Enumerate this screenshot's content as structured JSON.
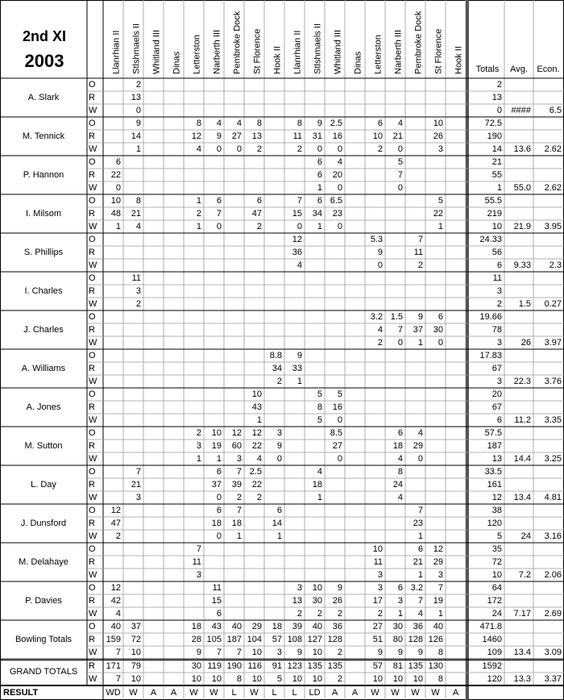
{
  "header": {
    "title": "2nd XI",
    "year": 2003
  },
  "columns": [
    "Llanrhian II",
    "Stlshmaels II",
    "Whitland III",
    "Dinas",
    "Letterston",
    "Narberth III",
    "Pembroke Dock",
    "St Florence",
    "Hook II",
    "Llanrhian II",
    "Stlshmaels II",
    "Whitland III",
    "Dinas",
    "Letterston",
    "Narberth III",
    "Pembroke Dock",
    "St Florence",
    "Hook II"
  ],
  "totals_headers": [
    "Totals",
    "Avg.",
    "Econ."
  ],
  "row_labels": [
    "O",
    "R",
    "W"
  ],
  "players": [
    {
      "name": "A. Slark",
      "overs": [
        null,
        2,
        null,
        null,
        null,
        null,
        null,
        null,
        null,
        null,
        null,
        null,
        null,
        null,
        null,
        null,
        null,
        null
      ],
      "runs": [
        null,
        13,
        null,
        null,
        null,
        null,
        null,
        null,
        null,
        null,
        null,
        null,
        null,
        null,
        null,
        null,
        null,
        null
      ],
      "wickets": [
        null,
        0,
        null,
        null,
        null,
        null,
        null,
        null,
        null,
        null,
        null,
        null,
        null,
        null,
        null,
        null,
        null,
        null
      ],
      "totals": [
        2,
        13,
        0
      ],
      "avg": "####",
      "econ": 6.5
    },
    {
      "name": "M. Tennick",
      "overs": [
        null,
        9,
        null,
        null,
        8,
        4,
        4,
        8,
        null,
        8,
        9,
        2.5,
        null,
        6,
        4,
        null,
        10,
        null
      ],
      "runs": [
        null,
        14,
        null,
        null,
        12,
        9,
        27,
        13,
        null,
        11,
        31,
        16,
        null,
        10,
        21,
        null,
        26,
        null
      ],
      "wickets": [
        null,
        1,
        null,
        null,
        4,
        0,
        0,
        2,
        null,
        2,
        0,
        0,
        null,
        2,
        0,
        null,
        3,
        null
      ],
      "totals": [
        72.5,
        190,
        14
      ],
      "avg": 13.6,
      "econ": 2.62
    },
    {
      "name": "P. Hannon",
      "overs": [
        6,
        null,
        null,
        null,
        null,
        null,
        null,
        null,
        null,
        null,
        6,
        4,
        null,
        null,
        5,
        null,
        null,
        null
      ],
      "runs": [
        22,
        null,
        null,
        null,
        null,
        null,
        null,
        null,
        null,
        null,
        6,
        20,
        null,
        null,
        7,
        null,
        null,
        null
      ],
      "wickets": [
        0,
        null,
        null,
        null,
        null,
        null,
        null,
        null,
        null,
        null,
        1,
        0,
        null,
        null,
        0,
        null,
        null,
        null
      ],
      "totals": [
        21,
        55,
        1
      ],
      "avg": "55.0",
      "econ": 2.62
    },
    {
      "name": "I. Milsom",
      "overs": [
        10,
        8,
        null,
        null,
        1,
        6,
        null,
        6,
        null,
        7,
        6,
        6.5,
        null,
        null,
        null,
        null,
        5,
        null
      ],
      "runs": [
        48,
        21,
        null,
        null,
        2,
        7,
        null,
        47,
        null,
        15,
        34,
        23,
        null,
        null,
        null,
        null,
        22,
        null
      ],
      "wickets": [
        1,
        4,
        null,
        null,
        1,
        0,
        null,
        2,
        null,
        0,
        1,
        0,
        null,
        null,
        null,
        null,
        1,
        null
      ],
      "totals": [
        55.5,
        219,
        10
      ],
      "avg": 21.9,
      "econ": 3.95
    },
    {
      "name": "S. Phillips",
      "overs": [
        null,
        null,
        null,
        null,
        null,
        null,
        null,
        null,
        null,
        12,
        null,
        null,
        null,
        5.3,
        null,
        7,
        null,
        null
      ],
      "runs": [
        null,
        null,
        null,
        null,
        null,
        null,
        null,
        null,
        null,
        36,
        null,
        null,
        null,
        9,
        null,
        11,
        null,
        null
      ],
      "wickets": [
        null,
        null,
        null,
        null,
        null,
        null,
        null,
        null,
        null,
        4,
        null,
        null,
        null,
        0,
        null,
        2,
        null,
        null
      ],
      "totals": [
        24.33,
        56,
        6
      ],
      "avg": 9.33,
      "econ": 2.3
    },
    {
      "name": "I. Charles",
      "overs": [
        null,
        11,
        null,
        null,
        null,
        null,
        null,
        null,
        null,
        null,
        null,
        null,
        null,
        null,
        null,
        null,
        null,
        null
      ],
      "runs": [
        null,
        3,
        null,
        null,
        null,
        null,
        null,
        null,
        null,
        null,
        null,
        null,
        null,
        null,
        null,
        null,
        null,
        null
      ],
      "wickets": [
        null,
        2,
        null,
        null,
        null,
        null,
        null,
        null,
        null,
        null,
        null,
        null,
        null,
        null,
        null,
        null,
        null,
        null
      ],
      "totals": [
        11,
        3,
        2
      ],
      "avg": 1.5,
      "econ": 0.27
    },
    {
      "name": "J. Charles",
      "overs": [
        null,
        null,
        null,
        null,
        null,
        null,
        null,
        null,
        null,
        null,
        null,
        null,
        null,
        3.2,
        1.5,
        9,
        6,
        null
      ],
      "runs": [
        null,
        null,
        null,
        null,
        null,
        null,
        null,
        null,
        null,
        null,
        null,
        null,
        null,
        4,
        7,
        37,
        30,
        null
      ],
      "wickets": [
        null,
        null,
        null,
        null,
        null,
        null,
        null,
        null,
        null,
        null,
        null,
        null,
        null,
        2,
        0,
        1,
        0,
        null
      ],
      "totals": [
        19.66,
        78,
        3
      ],
      "avg": 26,
      "econ": 3.97
    },
    {
      "name": "A. Williams",
      "overs": [
        null,
        null,
        null,
        null,
        null,
        null,
        null,
        null,
        8.8,
        9,
        null,
        null,
        null,
        null,
        null,
        null,
        null,
        null
      ],
      "runs": [
        null,
        null,
        null,
        null,
        null,
        null,
        null,
        null,
        34,
        33,
        null,
        null,
        null,
        null,
        null,
        null,
        null,
        null
      ],
      "wickets": [
        null,
        null,
        null,
        null,
        null,
        null,
        null,
        null,
        2,
        1,
        null,
        null,
        null,
        null,
        null,
        null,
        null,
        null
      ],
      "totals": [
        17.83,
        67,
        3
      ],
      "avg": 22.3,
      "econ": 3.76
    },
    {
      "name": "A. Jones",
      "overs": [
        null,
        null,
        null,
        null,
        null,
        null,
        null,
        10,
        null,
        null,
        5,
        5,
        null,
        null,
        null,
        null,
        null,
        null
      ],
      "runs": [
        null,
        null,
        null,
        null,
        null,
        null,
        null,
        43,
        null,
        null,
        8,
        16,
        null,
        null,
        null,
        null,
        null,
        null
      ],
      "wickets": [
        null,
        null,
        null,
        null,
        null,
        null,
        null,
        1,
        null,
        null,
        5,
        0,
        null,
        null,
        null,
        null,
        null,
        null
      ],
      "totals": [
        20,
        67,
        6
      ],
      "avg": 11.2,
      "econ": 3.35
    },
    {
      "name": "M. Sutton",
      "overs": [
        null,
        null,
        null,
        null,
        2,
        10,
        12,
        12,
        3,
        null,
        null,
        8.5,
        null,
        null,
        6,
        4,
        null,
        null
      ],
      "runs": [
        null,
        null,
        null,
        null,
        3,
        19,
        60,
        22,
        9,
        null,
        null,
        27,
        null,
        null,
        18,
        29,
        null,
        null
      ],
      "wickets": [
        null,
        null,
        null,
        null,
        1,
        1,
        3,
        4,
        0,
        null,
        null,
        0,
        null,
        null,
        4,
        0,
        null,
        null
      ],
      "totals": [
        57.5,
        187,
        13
      ],
      "avg": 14.4,
      "econ": 3.25
    },
    {
      "name": "L. Day",
      "overs": [
        null,
        7,
        null,
        null,
        null,
        6,
        7,
        2.5,
        null,
        null,
        4,
        null,
        null,
        null,
        8,
        null,
        null,
        null
      ],
      "runs": [
        null,
        21,
        null,
        null,
        null,
        37,
        39,
        22,
        null,
        null,
        18,
        null,
        null,
        null,
        24,
        null,
        null,
        null
      ],
      "wickets": [
        null,
        3,
        null,
        null,
        null,
        0,
        2,
        2,
        null,
        null,
        1,
        null,
        null,
        null,
        4,
        null,
        null,
        null
      ],
      "totals": [
        33.5,
        161,
        12
      ],
      "avg": 13.4,
      "econ": 4.81
    },
    {
      "name": "J. Dunsford",
      "overs": [
        12,
        null,
        null,
        null,
        null,
        6,
        7,
        null,
        6,
        null,
        null,
        null,
        null,
        null,
        null,
        7,
        null,
        null
      ],
      "runs": [
        47,
        null,
        null,
        null,
        null,
        18,
        18,
        null,
        14,
        null,
        null,
        null,
        null,
        null,
        null,
        23,
        null,
        null
      ],
      "wickets": [
        2,
        null,
        null,
        null,
        null,
        0,
        1,
        null,
        1,
        null,
        null,
        null,
        null,
        null,
        null,
        1,
        null,
        null
      ],
      "totals": [
        38,
        120,
        5
      ],
      "avg": 24,
      "econ": 3.16
    },
    {
      "name": "M. Delahaye",
      "overs": [
        null,
        null,
        null,
        null,
        7,
        null,
        null,
        null,
        null,
        null,
        null,
        null,
        null,
        10,
        null,
        6,
        12,
        null
      ],
      "runs": [
        null,
        null,
        null,
        null,
        11,
        null,
        null,
        null,
        null,
        null,
        null,
        null,
        null,
        11,
        null,
        21,
        29,
        null
      ],
      "wickets": [
        null,
        null,
        null,
        null,
        3,
        null,
        null,
        null,
        null,
        null,
        null,
        null,
        null,
        3,
        null,
        1,
        3,
        null
      ],
      "totals": [
        35,
        72,
        10
      ],
      "avg": 7.2,
      "econ": 2.06
    },
    {
      "name": "P. Davies",
      "overs": [
        12,
        null,
        null,
        null,
        null,
        11,
        null,
        null,
        null,
        3,
        10,
        9,
        null,
        3,
        6,
        3.2,
        7,
        null
      ],
      "runs": [
        42,
        null,
        null,
        null,
        null,
        15,
        null,
        null,
        null,
        13,
        30,
        26,
        null,
        17,
        3,
        7,
        19,
        null
      ],
      "wickets": [
        4,
        null,
        null,
        null,
        null,
        6,
        null,
        null,
        null,
        2,
        2,
        2,
        null,
        2,
        1,
        4,
        1,
        null
      ],
      "totals": [
        64,
        172,
        24
      ],
      "avg": 7.17,
      "econ": 2.69
    },
    {
      "name": "Bowling Totals",
      "overs": [
        40,
        37,
        null,
        null,
        18,
        43,
        40,
        29,
        18,
        39,
        40,
        36,
        null,
        27,
        30,
        36,
        40,
        null
      ],
      "runs": [
        159,
        72,
        null,
        null,
        28,
        105,
        187,
        104,
        57,
        108,
        127,
        128,
        null,
        51,
        80,
        128,
        126,
        null
      ],
      "wickets": [
        7,
        10,
        null,
        null,
        9,
        7,
        7,
        10,
        3,
        9,
        10,
        2,
        null,
        9,
        9,
        9,
        8,
        null
      ],
      "totals": [
        471.8,
        1460,
        109
      ],
      "avg": 13.4,
      "econ": 3.09
    }
  ],
  "grand_totals": {
    "label": "GRAND TOTALS",
    "runs": [
      171,
      79,
      null,
      null,
      30,
      119,
      190,
      116,
      91,
      123,
      135,
      135,
      null,
      57,
      81,
      135,
      130,
      null
    ],
    "wickets": [
      7,
      10,
      null,
      null,
      10,
      10,
      8,
      10,
      5,
      10,
      10,
      2,
      null,
      10,
      10,
      10,
      8,
      null
    ],
    "totals": [
      1592,
      120
    ],
    "avg": 13.3,
    "econ": 3.37
  },
  "result": {
    "label": "RESULT",
    "values": [
      "WD",
      "W",
      "A",
      "A",
      "W",
      "W",
      "L",
      "W",
      "L",
      "L",
      "LD",
      "A",
      "A",
      "W",
      "W",
      "W",
      "W",
      "A"
    ]
  }
}
